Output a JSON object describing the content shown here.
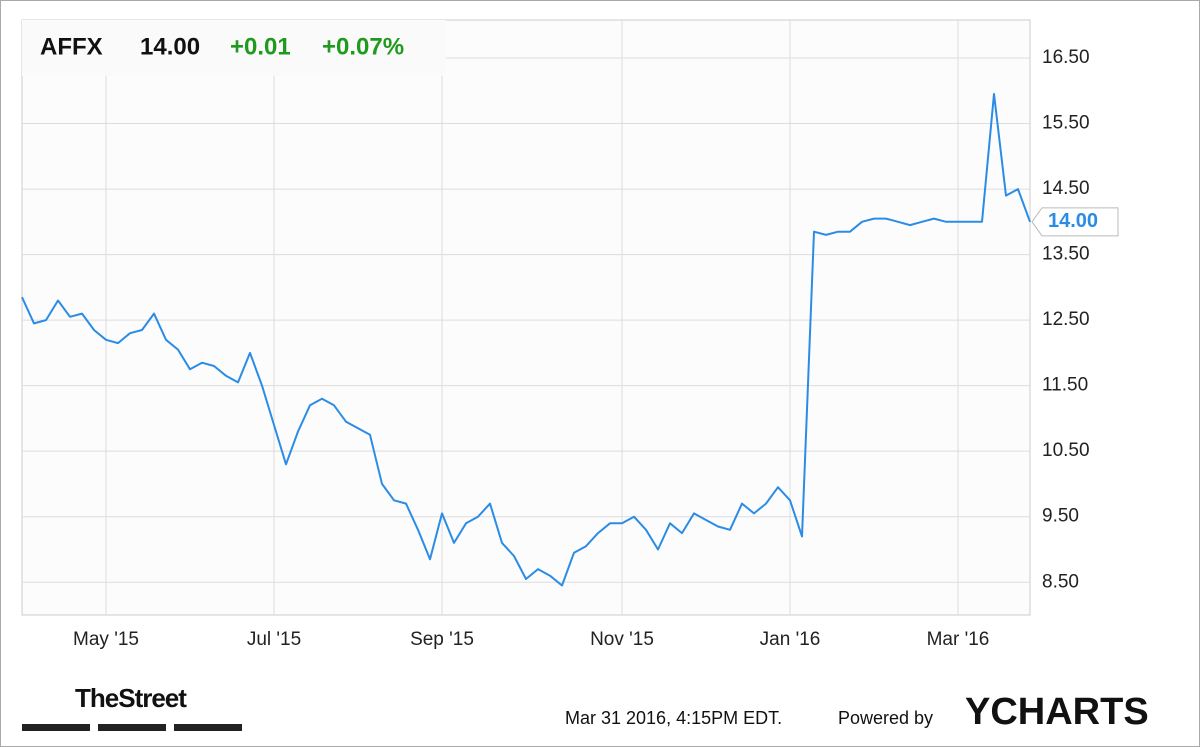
{
  "chart_data": {
    "type": "line",
    "price": "14.00",
    "change": "+0.01",
    "change_pct": "+0.07%",
    "last_label": "14.00",
    "categories": [
      null,
      null,
      null,
      null,
      null,
      null,
      null,
      "May '15",
      null,
      null,
      null,
      null,
      null,
      null,
      null,
      null,
      null,
      null,
      null,
      null,
      null,
      "Jul '15",
      null,
      null,
      null,
      null,
      null,
      null,
      null,
      null,
      null,
      null,
      null,
      null,
      null,
      "Sep '15",
      null,
      null,
      null,
      null,
      null,
      null,
      null,
      null,
      null,
      null,
      null,
      null,
      null,
      null,
      "Nov '15",
      null,
      null,
      null,
      null,
      null,
      null,
      null,
      null,
      null,
      null,
      null,
      null,
      null,
      "Jan '16",
      null,
      null,
      null,
      null,
      null,
      null,
      null,
      null,
      null,
      null,
      null,
      null,
      null,
      "Mar '16",
      null,
      null,
      null,
      null,
      null,
      null
    ],
    "series": [
      {
        "name": "AFFX",
        "color": "#2b8ce6",
        "values": [
          12.85,
          12.45,
          12.5,
          12.8,
          12.55,
          12.6,
          12.35,
          12.2,
          12.15,
          12.3,
          12.35,
          12.6,
          12.2,
          12.05,
          11.75,
          11.85,
          11.8,
          11.65,
          11.55,
          12.0,
          11.5,
          10.9,
          10.3,
          10.8,
          11.2,
          11.3,
          11.2,
          10.95,
          10.85,
          10.75,
          10.0,
          9.75,
          9.7,
          9.3,
          8.85,
          9.55,
          9.1,
          9.4,
          9.5,
          9.7,
          9.1,
          8.9,
          8.55,
          8.7,
          8.6,
          8.45,
          8.95,
          9.05,
          9.25,
          9.4,
          9.4,
          9.5,
          9.3,
          9.0,
          9.4,
          9.25,
          9.55,
          9.45,
          9.35,
          9.3,
          9.7,
          9.55,
          9.7,
          9.95,
          9.75,
          9.2,
          13.85,
          13.8,
          13.85,
          13.85,
          14.0,
          14.05,
          14.05,
          14.0,
          13.95,
          14.0,
          14.05,
          14.0,
          14.0,
          14.0,
          14.0,
          15.95,
          14.4,
          14.5,
          14.0
        ]
      }
    ],
    "ylim": [
      8.0,
      17.08
    ],
    "yticks": [
      {
        "value": 8.5,
        "label": "8.50"
      },
      {
        "value": 9.5,
        "label": "9.50"
      },
      {
        "value": 10.5,
        "label": "10.50"
      },
      {
        "value": 11.5,
        "label": "11.50"
      },
      {
        "value": 12.5,
        "label": "12.50"
      },
      {
        "value": 13.5,
        "label": "13.50"
      },
      {
        "value": 14.5,
        "label": "14.50"
      },
      {
        "value": 15.5,
        "label": "15.50"
      },
      {
        "value": 16.5,
        "label": "16.50"
      }
    ],
    "grid": true,
    "source_logo": "TheStreet",
    "timestamp": "Mar 31 2016, 4:15PM EDT.",
    "powered_by": "Powered by",
    "brand": "YCHARTS"
  }
}
